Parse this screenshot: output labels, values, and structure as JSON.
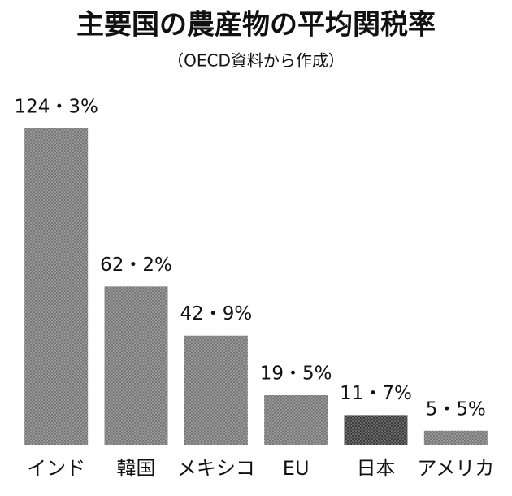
{
  "chart_data": {
    "type": "bar",
    "title": "主要国の農産物の平均関税率",
    "subtitle": "（OECD資料から作成）",
    "categories": [
      "インド",
      "韓国",
      "メキシコ",
      "EU",
      "日本",
      "アメリカ"
    ],
    "values": [
      124.3,
      62.2,
      42.9,
      19.5,
      11.7,
      5.5
    ],
    "value_labels": [
      "124・3%",
      "62・2%",
      "42・9%",
      "19・5%",
      "11・7%",
      "5・5%"
    ],
    "colors": [
      "#6e6e6e",
      "#6e6e6e",
      "#6e6e6e",
      "#6e6e6e",
      "#2e2e2e",
      "#6e6e6e"
    ]
  }
}
